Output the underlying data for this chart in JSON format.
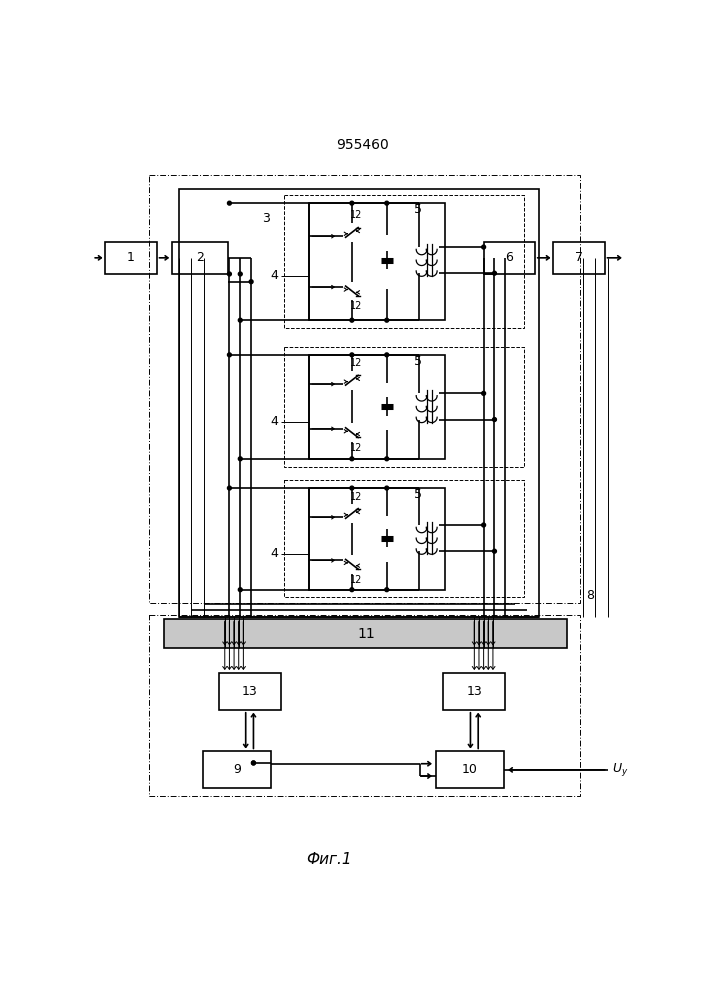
{
  "title": "955460",
  "caption": "Фиг.1",
  "bg": "#ffffff",
  "lw": 1.2,
  "tlw": 0.7,
  "mlw": 1.0,
  "fs": 9,
  "fs_small": 7
}
